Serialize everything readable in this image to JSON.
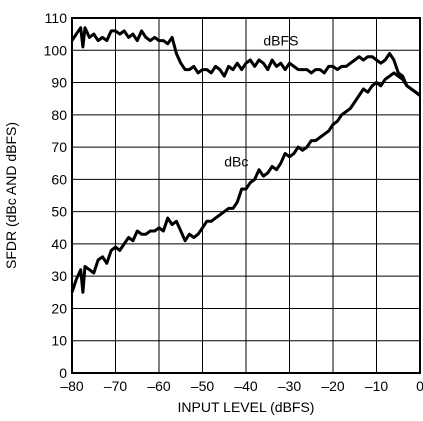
{
  "chart_data": {
    "type": "line",
    "title": "",
    "xlabel": "INPUT LEVEL (dBFS)",
    "ylabel": "SFDR (dBc AND dBFS)",
    "xlim": [
      -80,
      0
    ],
    "ylim": [
      0,
      110
    ],
    "xticks": [
      -80,
      -70,
      -60,
      -50,
      -40,
      -30,
      -20,
      -10,
      0
    ],
    "xtick_labels": [
      "–80",
      "–70",
      "–60",
      "–50",
      "–40",
      "–30",
      "–20",
      "–10",
      "0"
    ],
    "yticks": [
      0,
      10,
      20,
      30,
      40,
      50,
      60,
      70,
      80,
      90,
      100,
      110
    ],
    "ytick_labels": [
      "0",
      "10",
      "20",
      "30",
      "40",
      "50",
      "60",
      "70",
      "80",
      "90",
      "100",
      "110"
    ],
    "grid": true,
    "line_color": "#000000",
    "series": [
      {
        "name": "dBFS",
        "x": [
          -80,
          -79,
          -78,
          -77.5,
          -77,
          -76,
          -75,
          -74,
          -73,
          -72,
          -71,
          -70,
          -69,
          -68,
          -67,
          -66,
          -65,
          -64,
          -63,
          -62,
          -61,
          -60,
          -59,
          -58,
          -57,
          -56,
          -55,
          -54,
          -53,
          -52,
          -51,
          -50,
          -49,
          -48,
          -47,
          -46,
          -45,
          -44,
          -43,
          -42,
          -41,
          -40,
          -39,
          -38,
          -37,
          -36,
          -35,
          -34,
          -33,
          -32,
          -31,
          -30,
          -29,
          -28,
          -27,
          -26,
          -25,
          -24,
          -23,
          -22,
          -21,
          -20,
          -19,
          -18,
          -17,
          -16,
          -15,
          -14,
          -13,
          -12,
          -11,
          -10,
          -9,
          -8,
          -7,
          -6,
          -5,
          -4,
          -3,
          -2,
          -1,
          0
        ],
        "values": [
          103,
          105,
          107,
          101,
          107,
          104,
          105,
          103,
          104,
          103,
          106,
          106,
          105,
          106,
          104,
          105,
          103,
          106,
          104,
          103,
          104,
          103,
          103,
          102,
          104,
          99,
          96,
          94,
          94,
          95,
          93,
          94,
          94,
          93,
          95,
          94,
          92,
          95,
          94,
          96,
          94,
          96,
          97,
          95,
          97,
          96,
          94,
          97,
          95,
          96,
          94,
          96,
          95,
          94,
          94,
          94,
          93,
          94,
          94,
          93,
          95,
          95,
          94,
          95,
          95,
          96,
          97,
          98,
          97,
          98,
          98,
          97,
          96,
          97,
          99,
          97,
          93,
          92,
          89,
          88,
          87,
          86
        ]
      },
      {
        "name": "dBc",
        "x": [
          -80,
          -79,
          -78,
          -77.5,
          -77,
          -76,
          -75,
          -74,
          -73,
          -72,
          -71,
          -70,
          -69,
          -68,
          -67,
          -66,
          -65,
          -64,
          -63,
          -62,
          -61,
          -60,
          -59,
          -58,
          -57,
          -56,
          -55,
          -54,
          -53,
          -52,
          -51,
          -50,
          -49,
          -48,
          -47,
          -46,
          -45,
          -44,
          -43,
          -42,
          -41,
          -40,
          -39,
          -38,
          -37,
          -36,
          -35,
          -34,
          -33,
          -32,
          -31,
          -30,
          -29,
          -28,
          -27,
          -26,
          -25,
          -24,
          -23,
          -22,
          -21,
          -20,
          -19,
          -18,
          -17,
          -16,
          -15,
          -14,
          -13,
          -12,
          -11,
          -10,
          -9,
          -8,
          -7,
          -6,
          -5,
          -4,
          -3,
          -2,
          -1,
          0
        ],
        "values": [
          25,
          29,
          32,
          25,
          33,
          32,
          31,
          35,
          36,
          34,
          38,
          39,
          38,
          40,
          42,
          41,
          44,
          43,
          43,
          44,
          44,
          45,
          44,
          48,
          46,
          47,
          44,
          41,
          43,
          42,
          43,
          45,
          47,
          47,
          48,
          49,
          50,
          51,
          51,
          53,
          57,
          57,
          59,
          60,
          63,
          61,
          62,
          64,
          63,
          65,
          68,
          67,
          68,
          70,
          69,
          70,
          72,
          72,
          73,
          74,
          75,
          77,
          78,
          80,
          81,
          82,
          84,
          86,
          88,
          87,
          89,
          90,
          89,
          91,
          92,
          93,
          92,
          91,
          89,
          88,
          87,
          86
        ]
      }
    ]
  }
}
